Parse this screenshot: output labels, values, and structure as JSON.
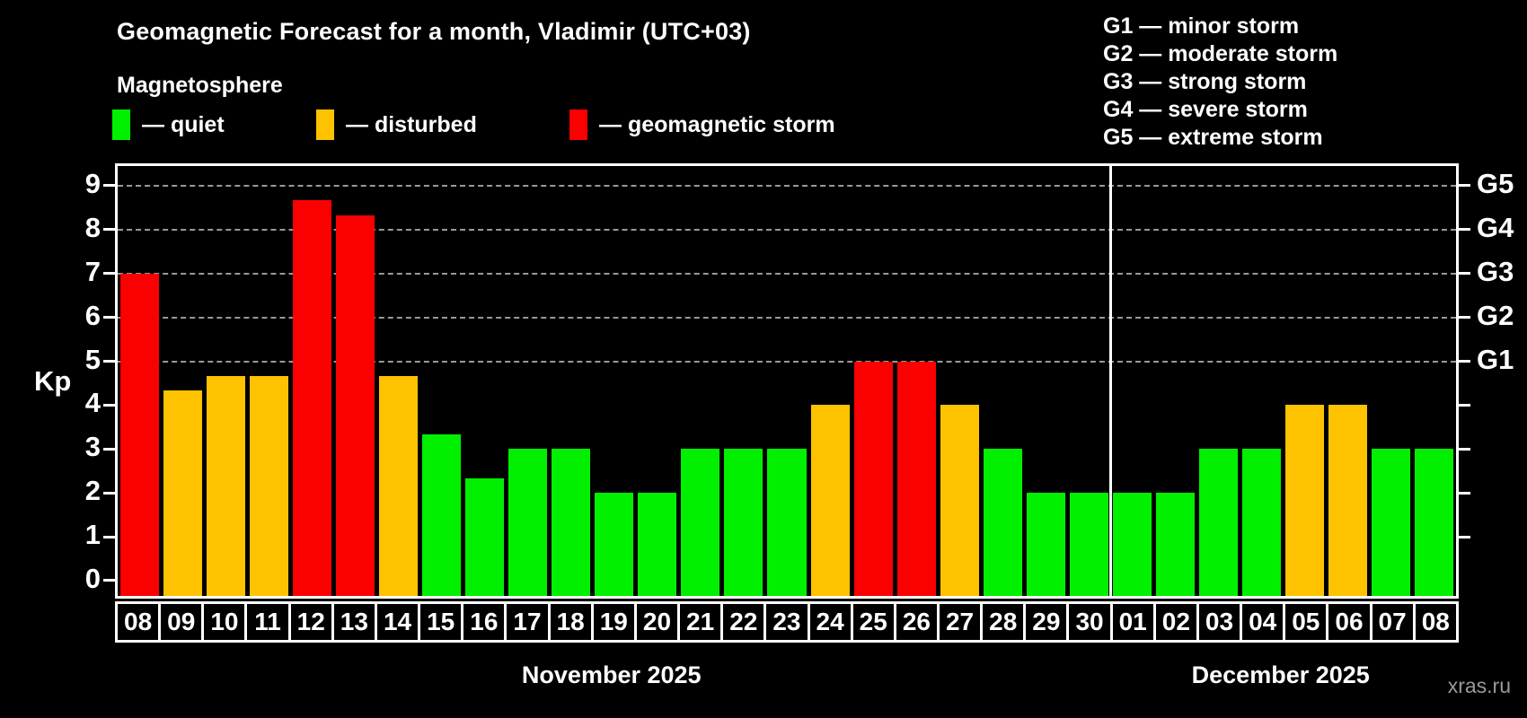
{
  "header": {
    "title": "Geomagnetic Forecast for a month, Vladimir (UTC+03)",
    "subtitle": "Magnetosphere",
    "legend": [
      {
        "status": "quiet",
        "label": "— quiet"
      },
      {
        "status": "disturbed",
        "label": "— disturbed"
      },
      {
        "status": "storm",
        "label": "— geomagnetic storm"
      }
    ],
    "storm_scale": [
      "G1 — minor storm",
      "G2 — moderate storm",
      "G3 — strong storm",
      "G4 — severe storm",
      "G5 — extreme storm"
    ]
  },
  "colors": {
    "quiet": "#00f000",
    "disturbed": "#ffc200",
    "storm": "#fa0000",
    "axis": "#ffffff",
    "grid": "#999999",
    "watermark": "#9a9a9a"
  },
  "chart_data": {
    "type": "bar",
    "title": "Geomagnetic Forecast for a month, Vladimir (UTC+03)",
    "xlabel": "",
    "ylabel": "Kp",
    "ylim": [
      0,
      9
    ],
    "grid": "dashed horizontal lines at Kp 5–9 (G1–G5)",
    "legend_position": "top",
    "kp_ticks": [
      0,
      1,
      2,
      3,
      4,
      5,
      6,
      7,
      8,
      9
    ],
    "right_axis_minor_ticks": [
      1,
      2,
      3,
      4
    ],
    "g_levels": [
      {
        "code": "G1",
        "kp": 5
      },
      {
        "code": "G2",
        "kp": 6
      },
      {
        "code": "G3",
        "kp": 7
      },
      {
        "code": "G4",
        "kp": 8
      },
      {
        "code": "G5",
        "kp": 9
      }
    ],
    "categories": [
      "08",
      "09",
      "10",
      "11",
      "12",
      "13",
      "14",
      "15",
      "16",
      "17",
      "18",
      "19",
      "20",
      "21",
      "22",
      "23",
      "24",
      "25",
      "26",
      "27",
      "28",
      "29",
      "30",
      "01",
      "02",
      "03",
      "04",
      "05",
      "06",
      "07",
      "08"
    ],
    "values": [
      7,
      4.33,
      4.67,
      4.67,
      8.67,
      8.33,
      4.67,
      3.33,
      2.33,
      3,
      3,
      2,
      2,
      3,
      3,
      3,
      4,
      5,
      5,
      4,
      3,
      2,
      2,
      2,
      2,
      3,
      3,
      4,
      4,
      3,
      3
    ],
    "statuses": [
      "storm",
      "disturbed",
      "disturbed",
      "disturbed",
      "storm",
      "storm",
      "disturbed",
      "quiet",
      "quiet",
      "quiet",
      "quiet",
      "quiet",
      "quiet",
      "quiet",
      "quiet",
      "quiet",
      "disturbed",
      "storm",
      "storm",
      "disturbed",
      "quiet",
      "quiet",
      "quiet",
      "quiet",
      "quiet",
      "quiet",
      "quiet",
      "disturbed",
      "disturbed",
      "quiet",
      "quiet"
    ],
    "months": [
      {
        "label": "November 2025",
        "days": 23
      },
      {
        "label": "December 2025",
        "days": 8
      }
    ]
  },
  "watermark": "xras.ru"
}
